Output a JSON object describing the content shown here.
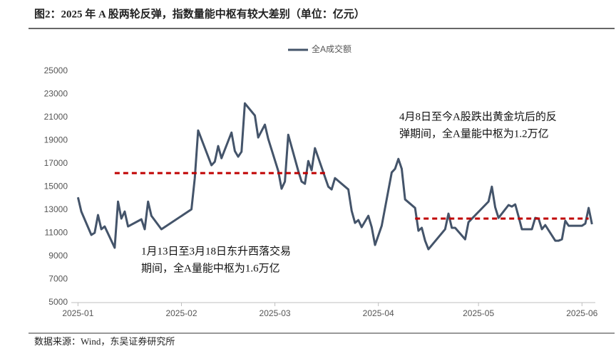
{
  "chart_data": {
    "type": "line",
    "title": "图2：2025 年 A 股两轮反弹，指数量能中枢有较大差别（单位：亿元）",
    "source": "数据来源：Wind，东吴证券研究所",
    "xlim": [
      -2,
      155
    ],
    "xticks": [
      {
        "value": 0,
        "label": "2025-01"
      },
      {
        "value": 31,
        "label": "2025-02"
      },
      {
        "value": 59,
        "label": "2025-03"
      },
      {
        "value": 90,
        "label": "2025-04"
      },
      {
        "value": 120,
        "label": "2025-05"
      },
      {
        "value": 151,
        "label": "2025-06"
      }
    ],
    "ylim": [
      5000,
      25000
    ],
    "yticks": [
      5000,
      7000,
      9000,
      11000,
      13000,
      15000,
      17000,
      19000,
      21000,
      23000,
      25000
    ],
    "legend": "top",
    "x": [
      0,
      1,
      4,
      5,
      6,
      7,
      8,
      11,
      12,
      13,
      14,
      15,
      19,
      20,
      21,
      22,
      25,
      34,
      35,
      36,
      40,
      41,
      42,
      43,
      46,
      47,
      48,
      49,
      50,
      53,
      54,
      56,
      57,
      60,
      61,
      62,
      63,
      66,
      67,
      68,
      69,
      70,
      71,
      75,
      76,
      77,
      81,
      82,
      83,
      84,
      85,
      87,
      88,
      89,
      91,
      94,
      95,
      96,
      97,
      98,
      101,
      102,
      103,
      104,
      105,
      110,
      111,
      112,
      113,
      116,
      117,
      123,
      124,
      125,
      126,
      129,
      130,
      131,
      132,
      133,
      136,
      137,
      138,
      139,
      140,
      143,
      144,
      145,
      146,
      147,
      151,
      152,
      153,
      154
    ],
    "series": [
      {
        "name": "全A成交额",
        "color": "#44546a",
        "values": [
          14100,
          12870,
          10850,
          11030,
          12570,
          11340,
          11580,
          9740,
          13730,
          12260,
          12870,
          11580,
          12200,
          11340,
          13730,
          12500,
          11340,
          13060,
          15760,
          19880,
          16870,
          17180,
          18530,
          17480,
          19700,
          18100,
          17610,
          18040,
          22220,
          21170,
          19270,
          20380,
          19150,
          16380,
          14840,
          15460,
          19510,
          16380,
          15460,
          15270,
          17240,
          16440,
          18350,
          15020,
          14780,
          15760,
          14780,
          12930,
          11890,
          12130,
          11520,
          12500,
          11520,
          9980,
          11640,
          16250,
          16560,
          17420,
          16560,
          13920,
          13180,
          11210,
          11460,
          10350,
          9610,
          11340,
          12690,
          11460,
          11460,
          10470,
          11950,
          13730,
          15020,
          13240,
          12320,
          13430,
          13300,
          13490,
          12440,
          11340,
          11340,
          12320,
          12260,
          11340,
          11700,
          10350,
          10350,
          10470,
          12070,
          11640,
          11640,
          11830,
          13180,
          11770
        ]
      }
    ],
    "reference_lines": [
      {
        "x": [
          11,
          75
        ],
        "value": 16190,
        "color": "#c00000",
        "text": [
          "1月13日至3月18日东升西落交易",
          "期间，全A量能中枢为1.6万亿"
        ]
      },
      {
        "x": [
          101,
          153
        ],
        "value": 12260,
        "color": "#c00000",
        "text": [
          "4月8日至今A股跌出黄金坑后的反",
          "弹期间，全A量能中枢为1.2万亿"
        ]
      }
    ]
  }
}
